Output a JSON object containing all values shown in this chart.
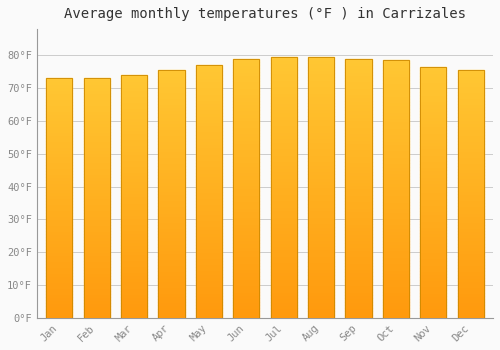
{
  "title": "Average monthly temperatures (°F ) in Carrizales",
  "months": [
    "Jan",
    "Feb",
    "Mar",
    "Apr",
    "May",
    "Jun",
    "Jul",
    "Aug",
    "Sep",
    "Oct",
    "Nov",
    "Dec"
  ],
  "values": [
    73,
    73,
    74,
    75.5,
    77,
    79,
    79.5,
    79.5,
    79,
    78.5,
    76.5,
    75.5
  ],
  "bar_color_inner": "#FFBB30",
  "bar_color_edge": "#E09010",
  "background_color": "#FAFAFA",
  "grid_color": "#CCCCCC",
  "ylim": [
    0,
    88
  ],
  "yticks": [
    0,
    10,
    20,
    30,
    40,
    50,
    60,
    70,
    80
  ],
  "ytick_labels": [
    "0°F",
    "10°F",
    "20°F",
    "30°F",
    "40°F",
    "50°F",
    "60°F",
    "70°F",
    "80°F"
  ],
  "title_fontsize": 10,
  "tick_fontsize": 7.5,
  "font_family": "monospace"
}
